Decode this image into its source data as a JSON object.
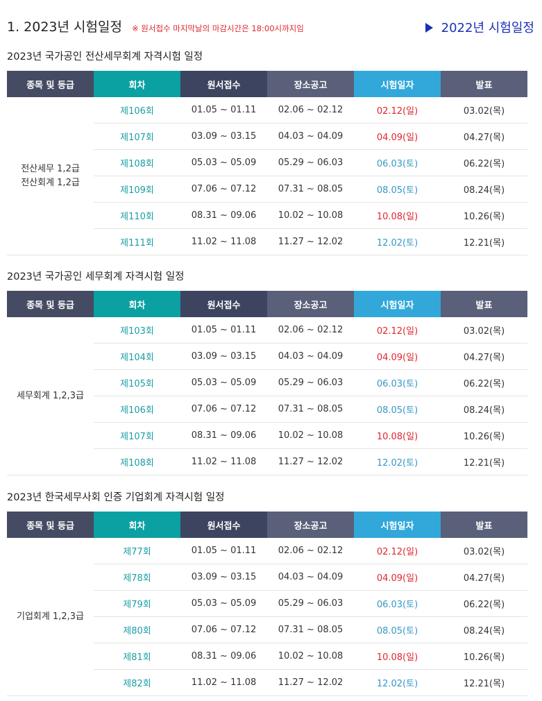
{
  "header": {
    "title": "1. 2023년 시험일정",
    "notice": "※ 원서접수 마지막날의 마감시간은 18:00시까지임",
    "link_2022": "2022년 시험일정"
  },
  "colors": {
    "sunday": "#e0262e",
    "saturday": "#3598c7",
    "round": "#1a9ea3",
    "link": "#1a2fb8"
  },
  "columns": [
    "종목 및 등급",
    "회차",
    "원서접수",
    "장소공고",
    "시험일자",
    "발표"
  ],
  "sections": [
    {
      "title": "2023년 국가공인 전산세무회계 자격시험 일정",
      "category_lines": [
        "전산세무 1,2급",
        "전산회계 1,2급"
      ],
      "rows": [
        {
          "round": "제106회",
          "apply": "01.05 ~ 01.11",
          "venue": "02.06 ~ 02.12",
          "exam": "02.12(일)",
          "exam_day": "sun",
          "result": "03.02(목)"
        },
        {
          "round": "제107회",
          "apply": "03.09 ~ 03.15",
          "venue": "04.03 ~ 04.09",
          "exam": "04.09(일)",
          "exam_day": "sun",
          "result": "04.27(목)"
        },
        {
          "round": "제108회",
          "apply": "05.03 ~ 05.09",
          "venue": "05.29 ~ 06.03",
          "exam": "06.03(토)",
          "exam_day": "sat",
          "result": "06.22(목)"
        },
        {
          "round": "제109회",
          "apply": "07.06 ~ 07.12",
          "venue": "07.31 ~ 08.05",
          "exam": "08.05(토)",
          "exam_day": "sat",
          "result": "08.24(목)"
        },
        {
          "round": "제110회",
          "apply": "08.31 ~ 09.06",
          "venue": "10.02 ~ 10.08",
          "exam": "10.08(일)",
          "exam_day": "sun",
          "result": "10.26(목)"
        },
        {
          "round": "제111회",
          "apply": "11.02 ~ 11.08",
          "venue": "11.27 ~ 12.02",
          "exam": "12.02(토)",
          "exam_day": "sat",
          "result": "12.21(목)"
        }
      ]
    },
    {
      "title": "2023년 국가공인 세무회계 자격시험 일정",
      "category_lines": [
        "세무회계 1,2,3급"
      ],
      "rows": [
        {
          "round": "제103회",
          "apply": "01.05 ~ 01.11",
          "venue": "02.06 ~ 02.12",
          "exam": "02.12(일)",
          "exam_day": "sun",
          "result": "03.02(목)"
        },
        {
          "round": "제104회",
          "apply": "03.09 ~ 03.15",
          "venue": "04.03 ~ 04.09",
          "exam": "04.09(일)",
          "exam_day": "sun",
          "result": "04.27(목)"
        },
        {
          "round": "제105회",
          "apply": "05.03 ~ 05.09",
          "venue": "05.29 ~ 06.03",
          "exam": "06.03(토)",
          "exam_day": "sat",
          "result": "06.22(목)"
        },
        {
          "round": "제106회",
          "apply": "07.06 ~ 07.12",
          "venue": "07.31 ~ 08.05",
          "exam": "08.05(토)",
          "exam_day": "sat",
          "result": "08.24(목)"
        },
        {
          "round": "제107회",
          "apply": "08.31 ~ 09.06",
          "venue": "10.02 ~ 10.08",
          "exam": "10.08(일)",
          "exam_day": "sun",
          "result": "10.26(목)"
        },
        {
          "round": "제108회",
          "apply": "11.02 ~ 11.08",
          "venue": "11.27 ~ 12.02",
          "exam": "12.02(토)",
          "exam_day": "sat",
          "result": "12.21(목)"
        }
      ]
    },
    {
      "title": "2023년 한국세무사회 인증 기업회계 자격시험 일정",
      "category_lines": [
        "기업회계 1,2,3급"
      ],
      "rows": [
        {
          "round": "제77회",
          "apply": "01.05 ~ 01.11",
          "venue": "02.06 ~ 02.12",
          "exam": "02.12(일)",
          "exam_day": "sun",
          "result": "03.02(목)"
        },
        {
          "round": "제78회",
          "apply": "03.09 ~ 03.15",
          "venue": "04.03 ~ 04.09",
          "exam": "04.09(일)",
          "exam_day": "sun",
          "result": "04.27(목)"
        },
        {
          "round": "제79회",
          "apply": "05.03 ~ 05.09",
          "venue": "05.29 ~ 06.03",
          "exam": "06.03(토)",
          "exam_day": "sat",
          "result": "06.22(목)"
        },
        {
          "round": "제80회",
          "apply": "07.06 ~ 07.12",
          "venue": "07.31 ~ 08.05",
          "exam": "08.05(토)",
          "exam_day": "sat",
          "result": "08.24(목)"
        },
        {
          "round": "제81회",
          "apply": "08.31 ~ 09.06",
          "venue": "10.02 ~ 10.08",
          "exam": "10.08(일)",
          "exam_day": "sun",
          "result": "10.26(목)"
        },
        {
          "round": "제82회",
          "apply": "11.02 ~ 11.08",
          "venue": "11.27 ~ 12.02",
          "exam": "12.02(토)",
          "exam_day": "sat",
          "result": "12.21(목)"
        }
      ]
    }
  ]
}
